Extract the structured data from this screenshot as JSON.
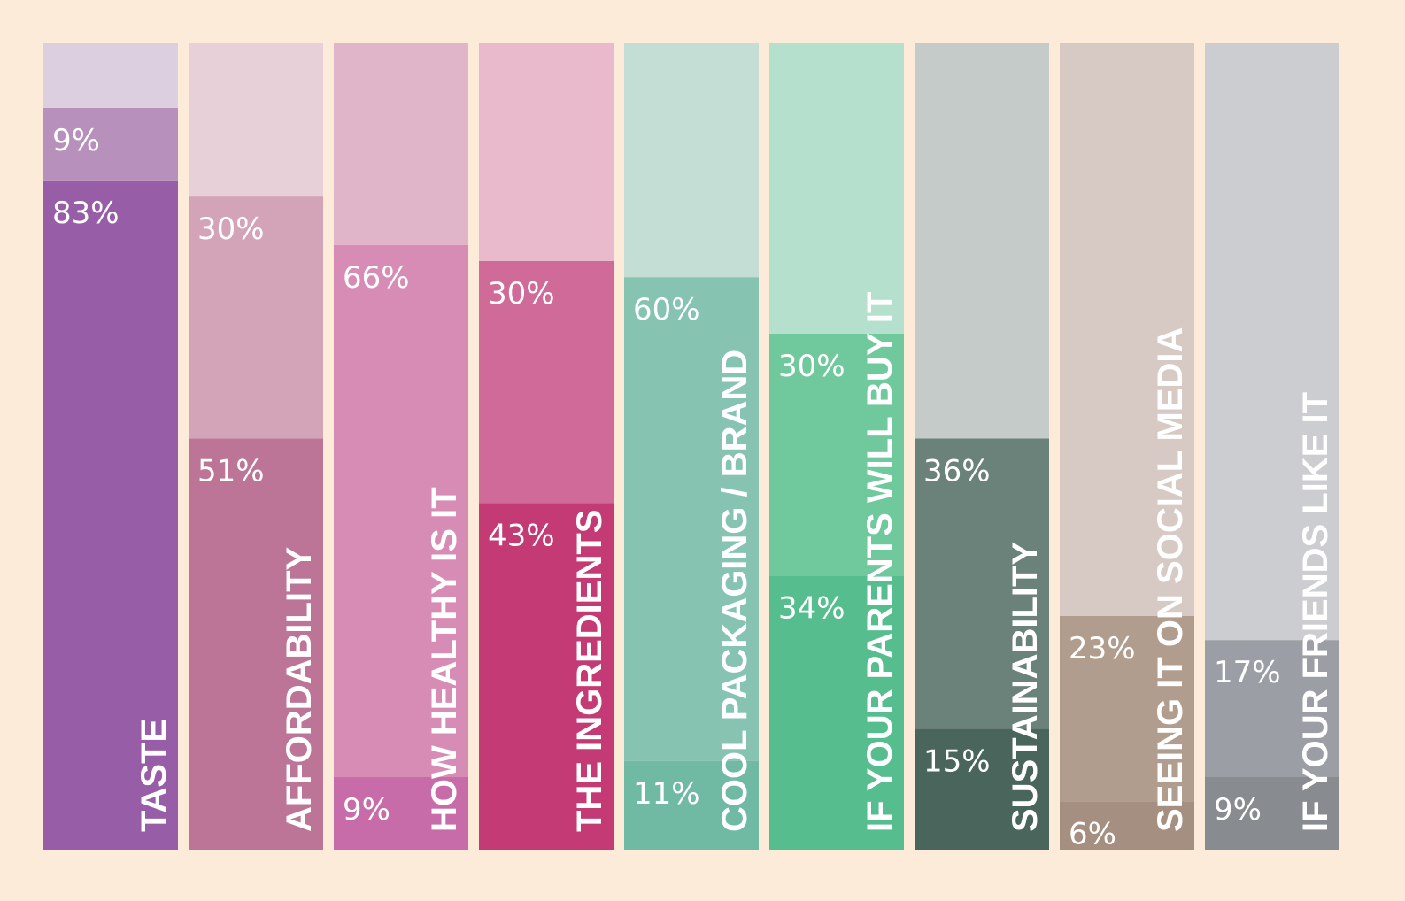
{
  "chart_data": {
    "type": "bar",
    "stacked": true,
    "orientation": "vertical",
    "ylim": [
      0,
      100
    ],
    "grid": false,
    "legend": "none",
    "background_color": "#fbebd8",
    "categories": [
      "TASTE",
      "AFFORDABILITY",
      "HOW HEALTHY IS IT",
      "THE INGREDIENTS",
      "COOL PACKAGING / BRAND",
      "IF YOUR PARENTS WILL BUY IT",
      "SUSTAINABILITY",
      "SEEING IT ON SOCIAL MEDIA",
      "IF YOUR FRIENDS LIKE IT"
    ],
    "series": [
      {
        "values": [
          83,
          51,
          9,
          43,
          11,
          34,
          15,
          6,
          9
        ],
        "labels": [
          "83%",
          "51%",
          "9%",
          "43%",
          "11%",
          "34%",
          "15%",
          "6%",
          "9%"
        ],
        "colors": [
          "#975da6",
          "#bc7597",
          "#c86ca9",
          "#c43a74",
          "#70b9a3",
          "#56be8e",
          "#4a655c",
          "#a48f80",
          "#888c90"
        ]
      },
      {
        "values": [
          9,
          30,
          66,
          30,
          60,
          30,
          36,
          23,
          17
        ],
        "labels": [
          "9%",
          "30%",
          "66%",
          "30%",
          "60%",
          "30%",
          "36%",
          "23%",
          "17%"
        ],
        "colors": [
          "#b790bc",
          "#d3a4b8",
          "#d78cb6",
          "#d06a98",
          "#86c3b1",
          "#70c89d",
          "#6b827a",
          "#b19d8e",
          "#9b9fa5"
        ]
      },
      {
        "values": [
          8,
          19,
          25,
          27,
          29,
          36,
          49,
          71,
          74
        ],
        "labels": [
          "",
          "",
          "",
          "",
          "",
          "",
          "",
          "",
          ""
        ],
        "colors": [
          "#dccfe0",
          "#e7d0d7",
          "#e1b5c9",
          "#e8bacb",
          "#c4ded6",
          "#b6e0ce",
          "#c4cbc8",
          "#d7cac4",
          "#cccdd1"
        ]
      }
    ]
  }
}
